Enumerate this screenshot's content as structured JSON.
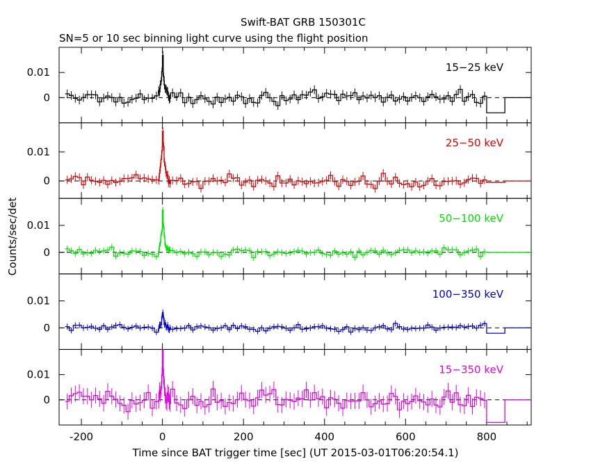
{
  "chart_data": {
    "type": "line",
    "title": "Swift-BAT GRB 150301C",
    "subtitle": "SN=5 or 10 sec binning light curve using the flight position",
    "xlabel": "Time since BAT trigger time [sec] (UT 2015-03-01T06:20:54.1)",
    "ylabel": "Counts/sec/det",
    "xlim": [
      -255,
      910
    ],
    "x_ticks": [
      -200,
      0,
      200,
      400,
      600,
      800
    ],
    "x_tick_labels": [
      "-200",
      "0",
      "200",
      "400",
      "600",
      "800"
    ],
    "y_ticks": [
      0,
      0.01
    ],
    "y_tick_labels": [
      "0",
      "0.01"
    ],
    "grid": false,
    "reference_line": 0,
    "panels": [
      {
        "name": "15-25 keV",
        "label": "15−25 keV",
        "color": "#000000",
        "ylim": [
          -0.01,
          0.02
        ],
        "noise": 0.0017,
        "peak": 0.0165,
        "tail": [
          -0.006,
          0.0
        ]
      },
      {
        "name": "25-50 keV",
        "label": "25−50 keV",
        "color": "#d40000",
        "ylim": [
          -0.006,
          0.02
        ],
        "noise": 0.0014,
        "peak": 0.018,
        "tail": [
          -0.0005,
          0.0
        ]
      },
      {
        "name": "50-100 keV",
        "label": "50−100 keV",
        "color": "#00e000",
        "ylim": [
          -0.008,
          0.02
        ],
        "noise": 0.0012,
        "peak": 0.015,
        "tail": [
          0.0,
          0.0
        ]
      },
      {
        "name": "100-350 keV",
        "label": "100−350 keV",
        "color": "#0000c8",
        "ylim": [
          -0.008,
          0.02
        ],
        "noise": 0.0011,
        "peak": 0.006,
        "tail": [
          -0.002,
          0.0
        ]
      },
      {
        "name": "15-350 keV",
        "label": "15−350 keV",
        "color": "#e000e0",
        "ylim": [
          -0.01,
          0.02
        ],
        "noise": 0.0032,
        "peak": 0.017,
        "tail": [
          -0.009,
          0.0
        ]
      }
    ]
  }
}
